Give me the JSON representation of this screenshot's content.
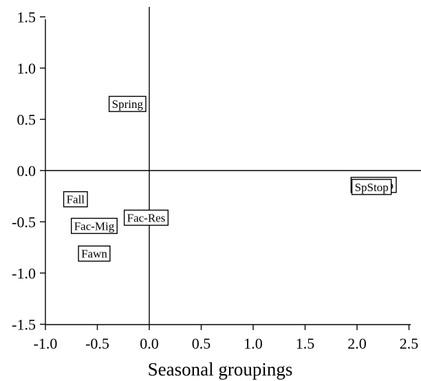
{
  "chart_data": {
    "type": "scatter",
    "title": "",
    "xlabel": "Seasonal groupings",
    "ylabel": "",
    "xlim": [
      -1.0,
      2.6
    ],
    "ylim": [
      -1.5,
      1.6
    ],
    "x_ticks": [
      "-1.0",
      "-0.5",
      "0.0",
      "0.5",
      "1.0",
      "1.5",
      "2.0",
      "2.5"
    ],
    "y_ticks": [
      "1.5",
      "1.0",
      "0.5",
      "0.0",
      "-0.5",
      "-1.0",
      "-1.5"
    ],
    "reference_lines": {
      "x_zero": true,
      "y_zero": true
    },
    "grid": false,
    "points": [
      {
        "label": "Spring",
        "x": -0.21,
        "y": 0.65
      },
      {
        "label": "Fall",
        "x": -0.71,
        "y": -0.28
      },
      {
        "label": "Fac-Res",
        "x": -0.03,
        "y": -0.46
      },
      {
        "label": "Fac-Mig",
        "x": -0.53,
        "y": -0.54
      },
      {
        "label": "Fawn",
        "x": -0.53,
        "y": -0.81
      },
      {
        "label": "FallStop",
        "x": 2.16,
        "y": -0.14
      },
      {
        "label": "SpStop",
        "x": 2.14,
        "y": -0.16
      }
    ]
  }
}
